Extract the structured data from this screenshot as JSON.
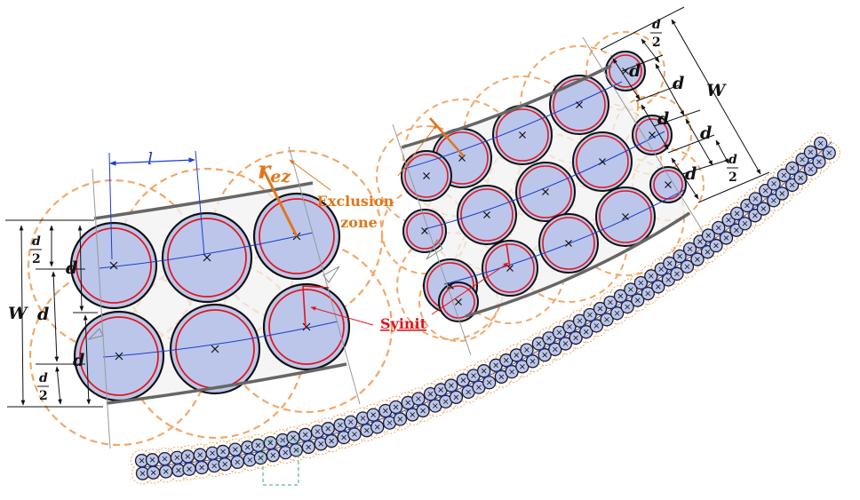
{
  "labels": {
    "l": "l",
    "rez_r": "r",
    "rez_sub": "ez",
    "exclusion_line1": "Exclusion",
    "exclusion_line2": "zone",
    "syinit": "Syinit",
    "d": "d",
    "d_half_num": "d",
    "d_half_den": "2",
    "W": "W",
    "cross": "×"
  },
  "colors": {
    "fiber_fill": "#bcc6ea",
    "fiber_ring": "#e0161c",
    "fiber_outline": "#111111",
    "exclusion_dash": "#f0a86a",
    "center_line": "#1a3ecc",
    "tape_edge": "#6a6a6a",
    "tape_fill": "#f1f1f1",
    "accent_orange": "#e0761c",
    "annotation_red": "#e0161c",
    "dim_blue": "#1a3ecc",
    "zoom_box": "#3aa86a"
  }
}
